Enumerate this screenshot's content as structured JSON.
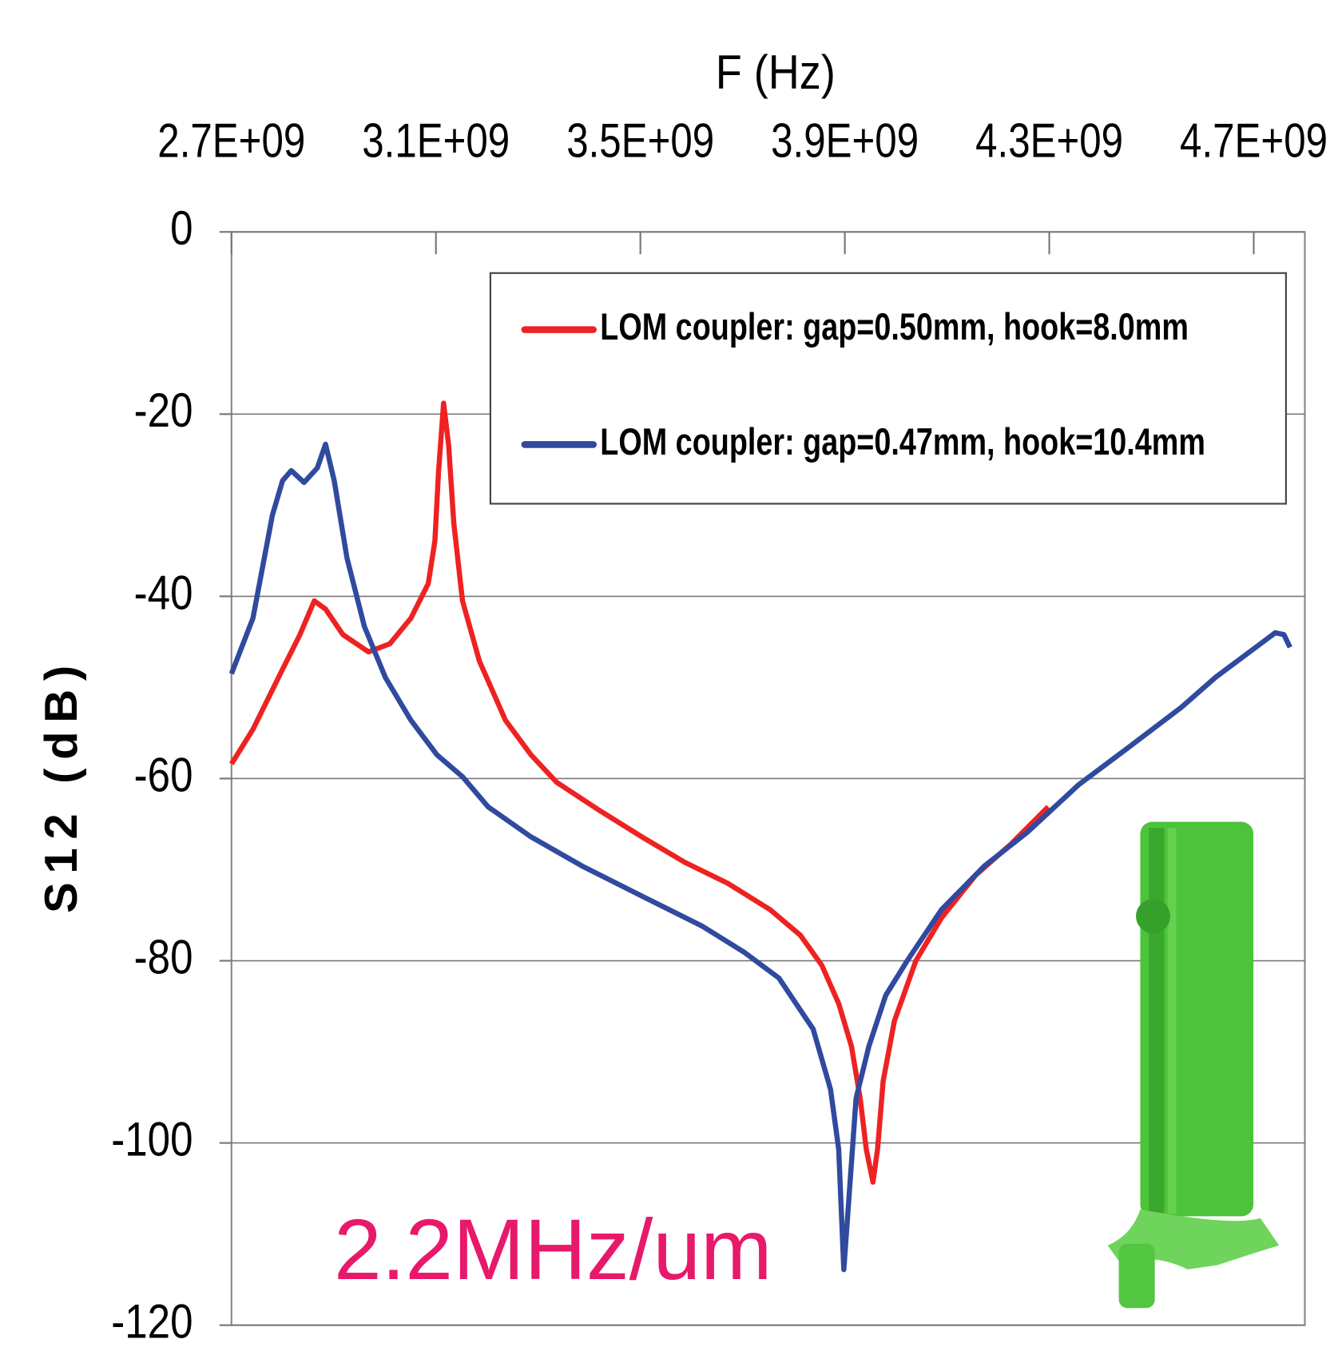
{
  "chart_data": {
    "type": "line",
    "title": "F (Hz)",
    "y_label": "S12 (dB)",
    "annotation": "2.2MHz/um",
    "xlim": [
      2700000000,
      4800000000
    ],
    "xticks": [
      {
        "value": 2700000000,
        "label": "2.7E+09"
      },
      {
        "value": 3100000000,
        "label": "3.1E+09"
      },
      {
        "value": 3500000000,
        "label": "3.5E+09"
      },
      {
        "value": 3900000000,
        "label": "3.9E+09"
      },
      {
        "value": 4300000000,
        "label": "4.3E+09"
      },
      {
        "value": 4700000000,
        "label": "4.7E+09"
      }
    ],
    "ylim": [
      -120,
      0
    ],
    "yticks": [
      0,
      -20,
      -40,
      -60,
      -80,
      -100,
      -120
    ],
    "grid": true,
    "legend": "upper right",
    "series": [
      {
        "name": "LOM coupler: gap=0.50mm, hook=8.0mm",
        "color": "#ee2222",
        "x": [
          2700000000,
          2742000000,
          2800000000,
          2834000000,
          2862000000,
          2884000000,
          2918000000,
          2968000000,
          3010000000,
          3051000000,
          3085000000,
          3098000000,
          3105000000,
          3115000000,
          3125000000,
          3135000000,
          3152000000,
          3185000000,
          3236000000,
          3286000000,
          3336000000,
          3420000000,
          3503000000,
          3587000000,
          3671000000,
          3754000000,
          3813000000,
          3855000000,
          3888000000,
          3913000000,
          3930000000,
          3942000000,
          3955000000,
          3964000000,
          3975000000,
          3997000000,
          4039000000,
          4089000000,
          4156000000,
          4223000000,
          4298000000
        ],
        "values": [
          -58.4,
          -54.6,
          -48,
          -44.2,
          -40.5,
          -41.4,
          -44.2,
          -46.1,
          -45.2,
          -42.4,
          -38.6,
          -33.9,
          -26.4,
          -18.8,
          -23.5,
          -32,
          -40.5,
          -47.1,
          -53.6,
          -57.4,
          -60.4,
          -63.5,
          -66.4,
          -69.2,
          -71.5,
          -74.4,
          -77.2,
          -80.5,
          -84.7,
          -89.4,
          -95.1,
          -100.7,
          -104.3,
          -100.7,
          -93.2,
          -86.6,
          -80,
          -75.3,
          -70.6,
          -67.3,
          -63.1
        ]
      },
      {
        "name": "LOM coupler: gap=0.47mm, hook=10.4mm",
        "color": "#2f4a9e",
        "x": [
          2700000000,
          2742000000,
          2780000000,
          2800000000,
          2817000000,
          2842000000,
          2868000000,
          2884000000,
          2901000000,
          2926000000,
          2960000000,
          3001000000,
          3051000000,
          3102000000,
          3152000000,
          3202000000,
          3286000000,
          3386000000,
          3503000000,
          3621000000,
          3704000000,
          3771000000,
          3838000000,
          3872000000,
          3888000000,
          3898000000,
          3910000000,
          3922000000,
          3947000000,
          3980000000,
          4022000000,
          4089000000,
          4173000000,
          4257000000,
          4357000000,
          4457000000,
          4558000000,
          4625000000,
          4692000000,
          4742000000,
          4759000000,
          4771000000
        ],
        "values": [
          -48.5,
          -42.4,
          -31.1,
          -27.3,
          -26.2,
          -27.5,
          -25.9,
          -23.3,
          -27.3,
          -35.8,
          -43.3,
          -48.9,
          -53.6,
          -57.4,
          -59.8,
          -63.1,
          -66.4,
          -69.6,
          -72.9,
          -76.2,
          -79.1,
          -81.9,
          -87.5,
          -94.1,
          -100.7,
          -113.9,
          -104.5,
          -95.1,
          -89.4,
          -83.8,
          -80,
          -74.4,
          -69.6,
          -65.9,
          -60.7,
          -56.5,
          -52.2,
          -48.9,
          -46.1,
          -44,
          -44.2,
          -45.6
        ]
      }
    ]
  }
}
